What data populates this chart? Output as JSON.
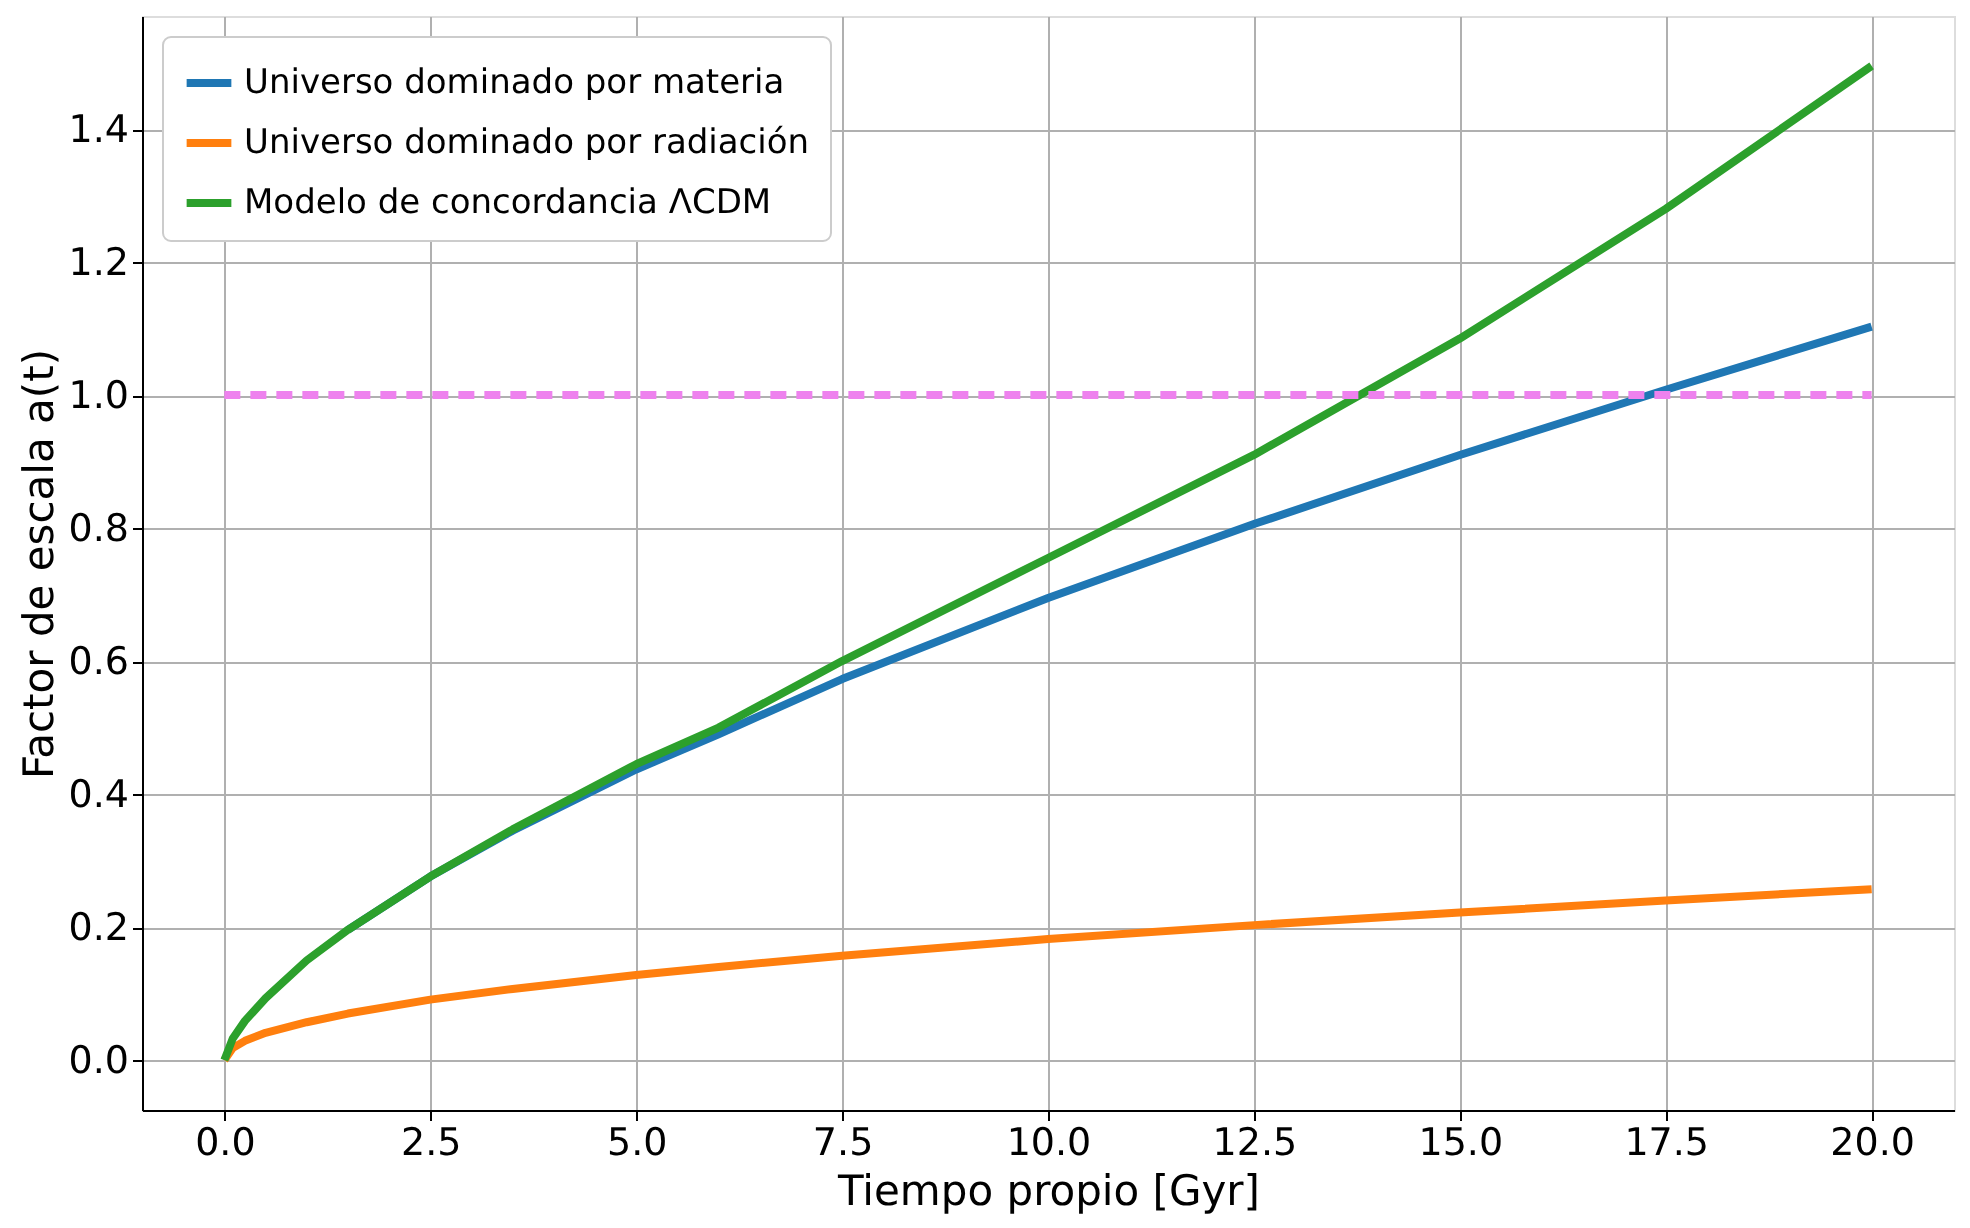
{
  "chart_data": {
    "type": "line",
    "xlabel": "Tiempo propio [Gyr]",
    "ylabel": "Factor de escala a(t)",
    "xlim": [
      -1,
      21
    ],
    "ylim": [
      -0.075,
      1.57
    ],
    "xticks": [
      {
        "value": 0,
        "label": "0.0"
      },
      {
        "value": 2.5,
        "label": "2.5"
      },
      {
        "value": 5,
        "label": "5.0"
      },
      {
        "value": 7.5,
        "label": "7.5"
      },
      {
        "value": 10,
        "label": "10.0"
      },
      {
        "value": 12.5,
        "label": "12.5"
      },
      {
        "value": 15,
        "label": "15.0"
      },
      {
        "value": 17.5,
        "label": "17.5"
      },
      {
        "value": 20,
        "label": "20.0"
      }
    ],
    "yticks": [
      {
        "value": 0,
        "label": "0.0"
      },
      {
        "value": 0.2,
        "label": "0.2"
      },
      {
        "value": 0.4,
        "label": "0.4"
      },
      {
        "value": 0.6,
        "label": "0.6"
      },
      {
        "value": 0.8,
        "label": "0.8"
      },
      {
        "value": 1,
        "label": "1.0"
      },
      {
        "value": 1.2,
        "label": "1.2"
      },
      {
        "value": 1.4,
        "label": "1.4"
      }
    ],
    "grid": true,
    "legend": "top left",
    "marker": "none",
    "line_style": "solid",
    "x": [
      0,
      0.1,
      0.25,
      0.5,
      1,
      1.5,
      2.5,
      3.5,
      5,
      6,
      7.5,
      10,
      12.5,
      15,
      17.5,
      20
    ],
    "series": [
      {
        "name": "Universo dominado por materia",
        "color": "#1f77b4",
        "values": [
          null,
          null,
          null,
          null,
          null,
          0.196,
          0.276,
          0.345,
          0.437,
          0.49,
          0.573,
          0.695,
          0.806,
          0.91,
          1.008,
          1.103
        ]
      },
      {
        "name": "Universo dominado por radiación",
        "color": "#ff7f0e",
        "values": [
          0,
          0.018,
          0.029,
          0.041,
          0.057,
          0.07,
          0.091,
          0.107,
          0.128,
          0.14,
          0.157,
          0.182,
          0.203,
          0.222,
          0.24,
          0.257
        ]
      },
      {
        "name": "Modelo de concordancia ΛCDM",
        "color": "#2ca02c",
        "values": [
          0,
          0.032,
          0.059,
          0.093,
          0.15,
          0.196,
          0.276,
          0.347,
          0.445,
          0.5,
          0.6,
          0.755,
          0.91,
          1.085,
          1.28,
          1.495
        ]
      },
      {
        "color": "#ee82ee",
        "line_style": "dashed",
        "x": [
          0,
          20
        ],
        "values": [
          1,
          1
        ]
      }
    ]
  }
}
